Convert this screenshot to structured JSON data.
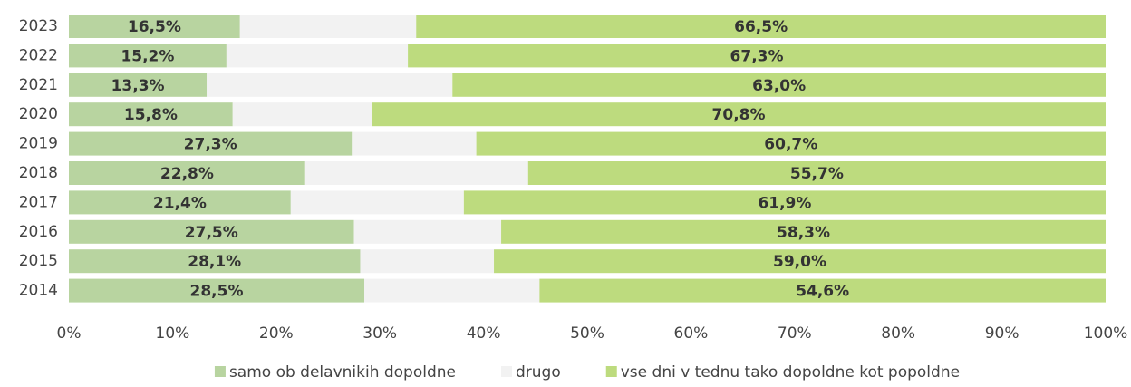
{
  "chart_data": {
    "type": "stacked-bar-horizontal",
    "categories": [
      "2023",
      "2022",
      "2021",
      "2020",
      "2019",
      "2018",
      "2017",
      "2016",
      "2015",
      "2014"
    ],
    "series": [
      {
        "name": "samo ob delavnikih dopoldne",
        "color": "#b8d4a0",
        "values": [
          16.5,
          15.2,
          13.3,
          15.8,
          27.3,
          22.8,
          21.4,
          27.5,
          28.1,
          28.5
        ],
        "value_labels": [
          "16,5%",
          "15,2%",
          "13,3%",
          "15,8%",
          "27,3%",
          "22,8%",
          "21,4%",
          "27,5%",
          "28,1%",
          "28,5%"
        ]
      },
      {
        "name": "drugo",
        "color": "#f2f2f2",
        "values": [
          17.0,
          17.5,
          23.7,
          13.4,
          12.0,
          21.5,
          16.7,
          14.2,
          12.9,
          16.9
        ]
      },
      {
        "name": "vse dni v tednu tako dopoldne kot popoldne",
        "color": "#bddb7e",
        "values": [
          66.5,
          67.3,
          63.0,
          70.8,
          60.7,
          55.7,
          61.9,
          58.3,
          59.0,
          54.6
        ],
        "value_labels": [
          "66,5%",
          "67,3%",
          "63,0%",
          "70,8%",
          "60,7%",
          "55,7%",
          "61,9%",
          "58,3%",
          "59,0%",
          "54,6%"
        ]
      }
    ],
    "xlim": [
      0,
      100
    ],
    "xticks": [
      {
        "value": 0,
        "label": "0%"
      },
      {
        "value": 10,
        "label": "10%"
      },
      {
        "value": 20,
        "label": "20%"
      },
      {
        "value": 30,
        "label": "30%"
      },
      {
        "value": 40,
        "label": "40%"
      },
      {
        "value": 50,
        "label": "50%"
      },
      {
        "value": 60,
        "label": "60%"
      },
      {
        "value": 70,
        "label": "70%"
      },
      {
        "value": 80,
        "label": "80%"
      },
      {
        "value": 90,
        "label": "90%"
      },
      {
        "value": 100,
        "label": "100%"
      }
    ],
    "legend": "bottom"
  }
}
